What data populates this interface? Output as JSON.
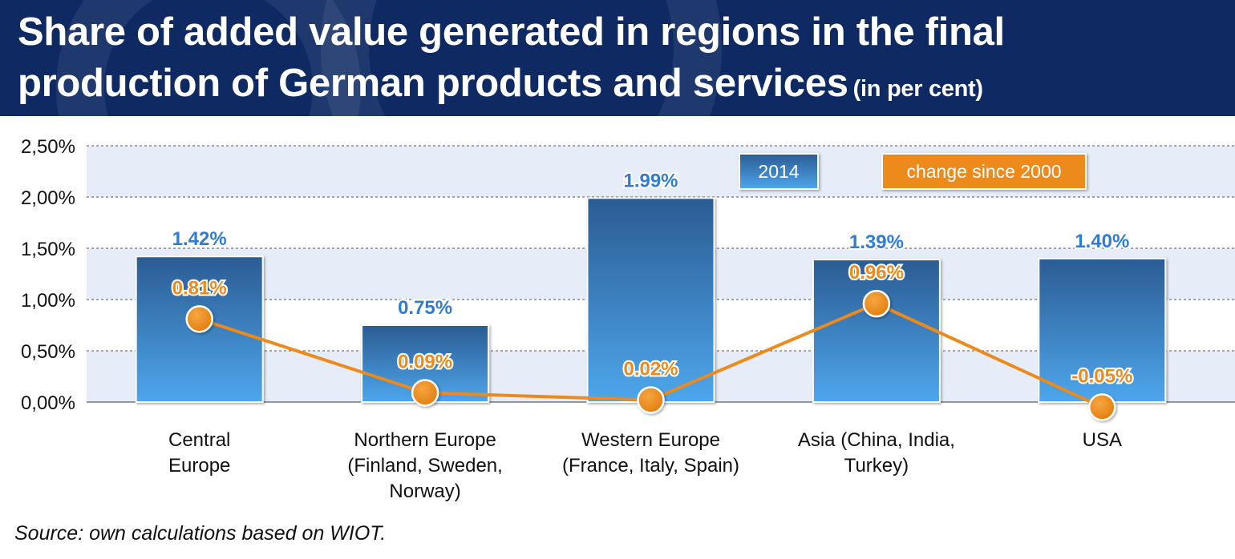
{
  "title": {
    "line1": "Share of added value generated in regions in the final",
    "line2": "production of German products and services",
    "unit": "(in per cent)"
  },
  "source": "Source: own calculations based on WIOT.",
  "colors": {
    "header_bg": "#0f2a63",
    "bar_top": "#2b5c93",
    "bar_bottom": "#4ea6ec",
    "bar_label": "#2f7cd4",
    "line": "#ec8a1c",
    "band": "#e6edf8"
  },
  "chart_data": {
    "type": "bar",
    "categories": [
      [
        "Central",
        "Europe"
      ],
      [
        "Northern Europe",
        "(Finland, Sweden,",
        "Norway)"
      ],
      [
        "Western Europe",
        "(France, Italy, Spain)"
      ],
      [
        "Asia (China, India,",
        "Turkey)"
      ],
      [
        "USA"
      ]
    ],
    "series": [
      {
        "name": "2014",
        "type": "bar",
        "values": [
          1.42,
          0.75,
          1.99,
          1.39,
          1.4
        ],
        "labels": [
          "1.42%",
          "0.75%",
          "1.99%",
          "1.39%",
          "1.40%"
        ]
      },
      {
        "name": "change since 2000",
        "type": "line",
        "values": [
          0.81,
          0.09,
          0.02,
          0.96,
          -0.05
        ],
        "labels": [
          "0.81%",
          "0.09%",
          "0.02%",
          "0.96%",
          "-0.05%"
        ]
      }
    ],
    "yticks": [
      "0,00%",
      "0,50%",
      "1,00%",
      "1,50%",
      "2,00%",
      "2,50%"
    ],
    "ylim": [
      0,
      2.5
    ],
    "grid": true,
    "legend": "top-right"
  }
}
